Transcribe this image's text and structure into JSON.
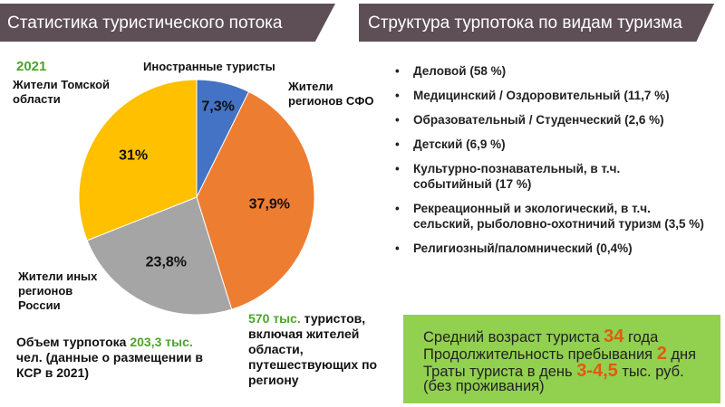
{
  "header": {
    "left_title": "Статистика туристического потока",
    "right_title": "Структура турпотока по видам туризма"
  },
  "chart_data": {
    "type": "pie",
    "title": "2021",
    "start_angle_deg": 0,
    "direction": "clockwise",
    "slices": [
      {
        "name": "Иностранные туристы",
        "value": 7.3,
        "label": "7,3%",
        "color": "#4472c4"
      },
      {
        "name": "Жители регионов СФО",
        "value": 37.9,
        "label": "37,9%",
        "color": "#ed7d31"
      },
      {
        "name": "Жители иных регионов России",
        "value": 23.8,
        "label": "23,8%",
        "color": "#a5a5a5"
      },
      {
        "name": "Жители Томской области",
        "value": 31,
        "label": "31%",
        "color": "#ffc000"
      }
    ]
  },
  "labels": {
    "year": "2021",
    "tomsk": "Жители Томской области",
    "foreign": "Иностранные туристы",
    "sfo": "Жители регионов СФО",
    "other": "Жители иных регионов России"
  },
  "volume": {
    "prefix": "Объем турпотока ",
    "value": "203,3 тыс.",
    "suffix": " чел. (данные о размещении в КСР в 2021)"
  },
  "tourists": {
    "value": "570 тыс.",
    "suffix": " туристов, включая жителей области, путешествующих по региону"
  },
  "structure": [
    "Деловой  (58 %)",
    "Медицинский / Оздоровительный (11,7 %)",
    "Образовательный / Студенческий (2,6 %)",
    "Детский (6,9 %)",
    "Культурно-познавательный, в т.ч. событийный (17 %)",
    "Рекреационный и экологический, в т.ч. сельский, рыболовно-охотничий туризм (3,5 %)",
    "Религиозный/паломнический (0,4%)"
  ],
  "stats": {
    "age_label": "Средний возраст туриста ",
    "age": "34",
    "age_unit": " года",
    "stay_label": "Продолжительность пребывания ",
    "stay": "2",
    "stay_unit": " дня",
    "spend_label": "Траты туриста в день ",
    "spend": "3-4,5",
    "spend_unit": " тыс. руб.",
    "spend_note": "(без проживания)"
  }
}
